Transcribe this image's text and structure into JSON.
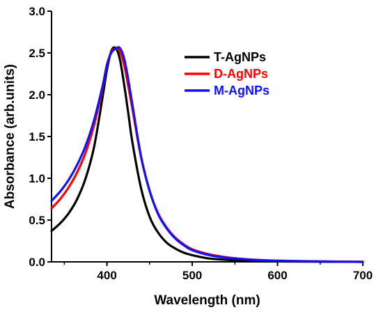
{
  "chart_data": {
    "type": "line",
    "title": "",
    "xlabel": "Wavelength (nm)",
    "ylabel": "Absorbance (arb.units)",
    "xlim": [
      335,
      700
    ],
    "ylim": [
      0.0,
      3.0
    ],
    "grid": false,
    "legend_position": "top-right",
    "x_ticks": [
      400,
      500,
      600,
      700
    ],
    "x_tick_labels": [
      "400",
      "500",
      "600",
      "700"
    ],
    "y_ticks": [
      0.0,
      0.5,
      1.0,
      1.5,
      2.0,
      2.5,
      3.0
    ],
    "y_tick_labels": [
      "0.0",
      "0.5",
      "1.0",
      "1.5",
      "2.0",
      "2.5",
      "3.0"
    ],
    "x": [
      335,
      345,
      355,
      365,
      375,
      385,
      395,
      400,
      405,
      410,
      415,
      420,
      425,
      430,
      440,
      450,
      460,
      470,
      480,
      490,
      500,
      520,
      540,
      560,
      580,
      600,
      650,
      700
    ],
    "series": [
      {
        "name": "T-AgNPs",
        "color": "#000000",
        "values": [
          0.37,
          0.46,
          0.58,
          0.75,
          1.0,
          1.38,
          1.98,
          2.3,
          2.52,
          2.56,
          2.43,
          2.13,
          1.78,
          1.42,
          0.88,
          0.54,
          0.35,
          0.23,
          0.16,
          0.11,
          0.08,
          0.04,
          0.025,
          0.015,
          0.01,
          0.005,
          0.002,
          0.0
        ]
      },
      {
        "name": "D-AgNPs",
        "color": "#ff0000",
        "values": [
          0.64,
          0.75,
          0.89,
          1.07,
          1.31,
          1.64,
          2.09,
          2.35,
          2.51,
          2.55,
          2.52,
          2.36,
          2.1,
          1.82,
          1.25,
          0.85,
          0.58,
          0.41,
          0.29,
          0.21,
          0.15,
          0.09,
          0.055,
          0.035,
          0.022,
          0.015,
          0.006,
          0.0
        ]
      },
      {
        "name": "M-AgNPs",
        "color": "#1010ff",
        "values": [
          0.73,
          0.84,
          0.98,
          1.16,
          1.39,
          1.7,
          2.11,
          2.36,
          2.5,
          2.55,
          2.56,
          2.44,
          2.18,
          1.87,
          1.26,
          0.85,
          0.57,
          0.4,
          0.28,
          0.2,
          0.14,
          0.08,
          0.05,
          0.032,
          0.02,
          0.012,
          0.004,
          0.0
        ]
      }
    ]
  }
}
